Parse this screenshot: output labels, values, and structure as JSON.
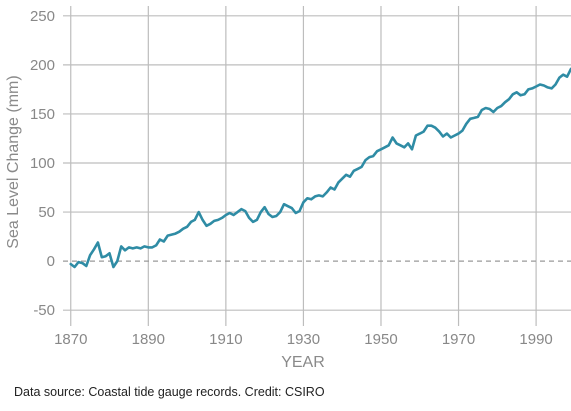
{
  "chart_data": {
    "type": "line",
    "xlabel": "YEAR",
    "ylabel": "Sea Level Change (mm)",
    "xlim": [
      1868,
      1999
    ],
    "ylim": [
      -60,
      260
    ],
    "x_ticks": [
      1870,
      1890,
      1910,
      1930,
      1950,
      1970,
      1990
    ],
    "y_ticks": [
      -50,
      0,
      50,
      100,
      150,
      200,
      250
    ],
    "grid": true,
    "zero_line": "dashed",
    "series": [
      {
        "color": "#2f8ca5",
        "x": [
          1870,
          1871,
          1872,
          1873,
          1874,
          1875,
          1876,
          1877,
          1878,
          1879,
          1880,
          1881,
          1882,
          1883,
          1884,
          1885,
          1886,
          1887,
          1888,
          1889,
          1890,
          1891,
          1892,
          1893,
          1894,
          1895,
          1896,
          1897,
          1898,
          1899,
          1900,
          1901,
          1902,
          1903,
          1904,
          1905,
          1906,
          1907,
          1908,
          1909,
          1910,
          1911,
          1912,
          1913,
          1914,
          1915,
          1916,
          1917,
          1918,
          1919,
          1920,
          1921,
          1922,
          1923,
          1924,
          1925,
          1926,
          1927,
          1928,
          1929,
          1930,
          1931,
          1932,
          1933,
          1934,
          1935,
          1936,
          1937,
          1938,
          1939,
          1940,
          1941,
          1942,
          1943,
          1944,
          1945,
          1946,
          1947,
          1948,
          1949,
          1950,
          1951,
          1952,
          1953,
          1954,
          1955,
          1956,
          1957,
          1958,
          1959,
          1960,
          1961,
          1962,
          1963,
          1964,
          1965,
          1966,
          1967,
          1968,
          1969,
          1970,
          1971,
          1972,
          1973,
          1974,
          1975,
          1976,
          1977,
          1978,
          1979,
          1980,
          1981,
          1982,
          1983,
          1984,
          1985,
          1986,
          1987,
          1988,
          1989,
          1990,
          1991,
          1992,
          1993,
          1994,
          1995,
          1996,
          1997,
          1998,
          1999
        ],
        "values": [
          -3,
          -6,
          -1,
          -2,
          -5,
          6,
          12,
          19,
          4,
          5,
          8,
          -6,
          0,
          15,
          11,
          14,
          13,
          14,
          13,
          15,
          14,
          14,
          16,
          22,
          20,
          26,
          27,
          28,
          30,
          33,
          35,
          40,
          42,
          50,
          42,
          36,
          38,
          41,
          42,
          44,
          47,
          49,
          47,
          50,
          53,
          51,
          44,
          40,
          42,
          50,
          55,
          48,
          45,
          46,
          50,
          58,
          56,
          54,
          49,
          51,
          60,
          64,
          63,
          66,
          67,
          66,
          70,
          75,
          73,
          80,
          84,
          88,
          86,
          92,
          94,
          96,
          103,
          106,
          107,
          112,
          114,
          116,
          118,
          126,
          120,
          118,
          116,
          120,
          114,
          128,
          130,
          132,
          138,
          138,
          136,
          132,
          127,
          130,
          126,
          128,
          130,
          133,
          140,
          145,
          146,
          147,
          154,
          156,
          155,
          152,
          156,
          158,
          162,
          165,
          170,
          172,
          169,
          170,
          175,
          176,
          178,
          180,
          179,
          177,
          176,
          180,
          187,
          190,
          188,
          196
        ]
      }
    ],
    "caption": "Data source: Coastal tide gauge records. Credit: CSIRO"
  }
}
